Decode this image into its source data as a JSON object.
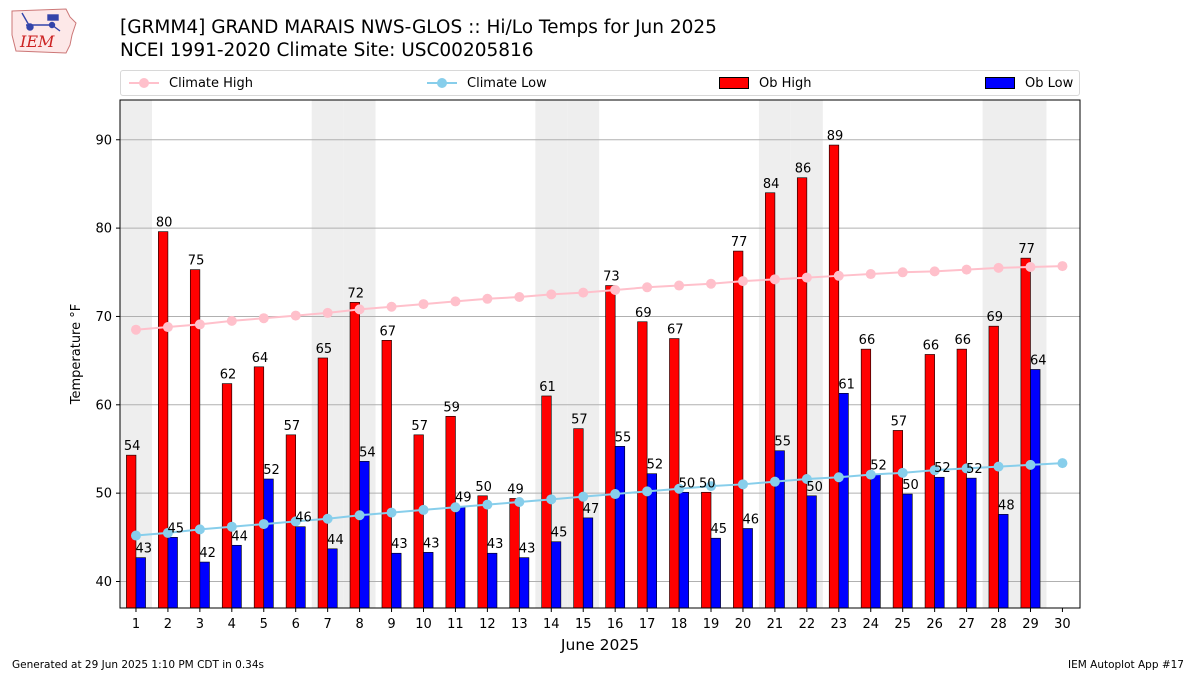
{
  "header": {
    "title_line1": "[GRMM4] GRAND MARAIS NWS-GLOS :: Hi/Lo Temps for Jun 2025",
    "title_line2": "NCEI 1991-2020 Climate Site: USC00205816",
    "logo_text": "IEM"
  },
  "footer": {
    "generated": "Generated at 29 Jun 2025 1:10 PM CDT in 0.34s",
    "app": "IEM Autoplot App #17"
  },
  "legend": {
    "climate_high": "Climate High",
    "climate_low": "Climate Low",
    "ob_high": "Ob High",
    "ob_low": "Ob Low"
  },
  "colors": {
    "ob_high": "#ff0000",
    "ob_low": "#0000ff",
    "climate_high": "#ffc0cb",
    "climate_low": "#87ceeb",
    "weekend_shade": "#eeeeee",
    "grid": "#b0b0b0"
  },
  "chart_data": {
    "type": "bar",
    "xlabel": "June 2025",
    "ylabel": "Temperature °F",
    "ylim": [
      37,
      94.5
    ],
    "yticks": [
      40,
      50,
      60,
      70,
      80,
      90
    ],
    "grid": "horizontal",
    "legend_position": "top",
    "categories": [
      "1",
      "2",
      "3",
      "4",
      "5",
      "6",
      "7",
      "8",
      "9",
      "10",
      "11",
      "12",
      "13",
      "14",
      "15",
      "16",
      "17",
      "18",
      "19",
      "20",
      "21",
      "22",
      "23",
      "24",
      "25",
      "26",
      "27",
      "28",
      "29",
      "30"
    ],
    "shaded_days": [
      "1",
      "7",
      "8",
      "14",
      "15",
      "21",
      "22",
      "28",
      "29"
    ],
    "series": [
      {
        "name": "Ob High",
        "kind": "bar",
        "values": [
          54,
          80,
          75,
          62,
          64,
          57,
          65,
          72,
          67,
          57,
          59,
          50,
          49,
          61,
          57,
          73,
          69,
          67,
          50,
          77,
          84,
          86,
          89,
          66,
          57,
          66,
          66,
          69,
          77,
          null
        ],
        "plotted": [
          54.3,
          79.6,
          75.3,
          62.4,
          64.3,
          56.6,
          65.3,
          71.6,
          67.3,
          56.6,
          58.7,
          49.7,
          49.4,
          61.0,
          57.3,
          73.5,
          69.4,
          67.5,
          50.1,
          77.4,
          84.0,
          85.7,
          89.4,
          66.3,
          57.1,
          65.7,
          66.3,
          68.9,
          76.6,
          null
        ]
      },
      {
        "name": "Ob Low",
        "kind": "bar",
        "values": [
          43,
          45,
          42,
          44,
          52,
          46,
          44,
          54,
          43,
          43,
          49,
          43,
          43,
          45,
          47,
          55,
          52,
          50,
          45,
          46,
          55,
          50,
          61,
          52,
          50,
          52,
          52,
          48,
          64,
          null
        ],
        "plotted": [
          42.7,
          45.0,
          42.2,
          44.1,
          51.6,
          46.2,
          43.7,
          53.6,
          43.2,
          43.3,
          48.5,
          43.2,
          42.7,
          44.5,
          47.2,
          55.3,
          52.2,
          50.1,
          44.9,
          46.0,
          54.8,
          49.7,
          61.3,
          52.1,
          49.9,
          51.8,
          51.7,
          47.6,
          64.0,
          null
        ]
      },
      {
        "name": "Climate High",
        "kind": "line",
        "values": [
          68.5,
          68.8,
          69.1,
          69.5,
          69.8,
          70.1,
          70.4,
          70.8,
          71.1,
          71.4,
          71.7,
          72.0,
          72.2,
          72.5,
          72.7,
          73.0,
          73.3,
          73.5,
          73.7,
          74.0,
          74.2,
          74.4,
          74.6,
          74.8,
          75.0,
          75.1,
          75.3,
          75.5,
          75.6,
          75.7
        ]
      },
      {
        "name": "Climate Low",
        "kind": "line",
        "values": [
          45.2,
          45.5,
          45.9,
          46.2,
          46.5,
          46.8,
          47.1,
          47.5,
          47.8,
          48.1,
          48.4,
          48.7,
          49.0,
          49.3,
          49.6,
          49.9,
          50.2,
          50.5,
          50.8,
          51.0,
          51.3,
          51.6,
          51.8,
          52.1,
          52.3,
          52.6,
          52.8,
          53.0,
          53.2,
          53.4
        ]
      }
    ]
  }
}
